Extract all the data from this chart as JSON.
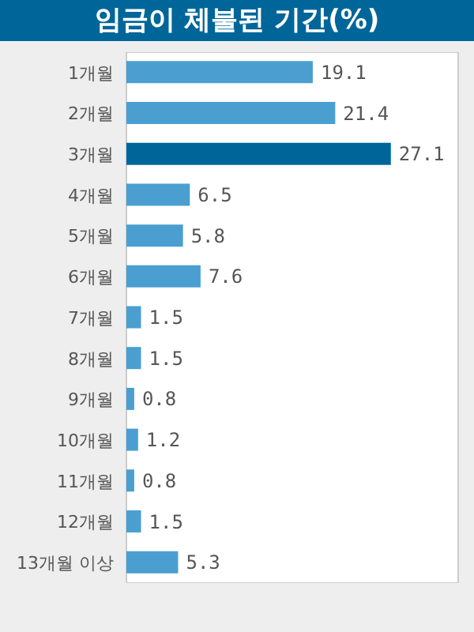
{
  "chart_data": {
    "type": "bar",
    "orientation": "horizontal",
    "title": "임금이 체불된 기간(%)",
    "categories": [
      "1개월",
      "2개월",
      "3개월",
      "4개월",
      "5개월",
      "6개월",
      "7개월",
      "8개월",
      "9개월",
      "10개월",
      "11개월",
      "12개월",
      "13개월 이상"
    ],
    "values": [
      19.1,
      21.4,
      27.1,
      6.5,
      5.8,
      7.6,
      1.5,
      1.5,
      0.8,
      1.2,
      0.8,
      1.5,
      5.3
    ],
    "colors": [
      "#4a9fd0",
      "#4a9fd0",
      "#00669a",
      "#4a9fd0",
      "#4a9fd0",
      "#4a9fd0",
      "#4a9fd0",
      "#4a9fd0",
      "#4a9fd0",
      "#4a9fd0",
      "#4a9fd0",
      "#4a9fd0",
      "#4a9fd0"
    ],
    "xlim": [
      0,
      34
    ],
    "tick_labels": "y",
    "data_labels": true
  }
}
